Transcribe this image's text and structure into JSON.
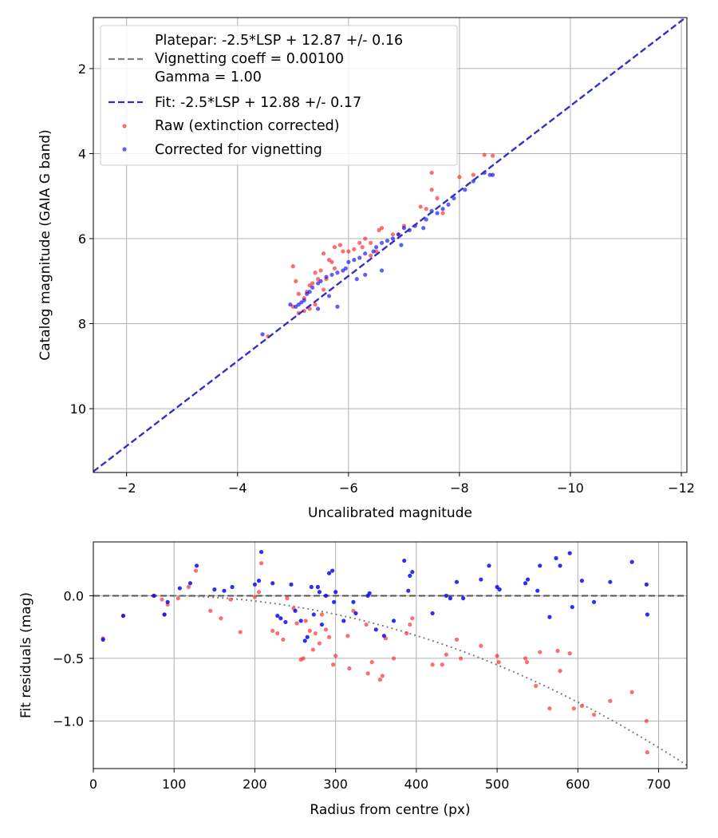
{
  "chart_data": [
    {
      "type": "scatter",
      "xlabel": "Uncalibrated magnitude",
      "ylabel": "Catalog magnitude (GAIA G band)",
      "xlim": [
        -1.4,
        -12.1
      ],
      "ylim": [
        11.5,
        0.8
      ],
      "xticks": [
        -2,
        -4,
        -6,
        -8,
        -10,
        -12
      ],
      "yticks": [
        2,
        4,
        6,
        8,
        10
      ],
      "xtick_labels": [
        "−2",
        "−4",
        "−6",
        "−8",
        "−10",
        "−12"
      ],
      "ytick_labels": [
        "2",
        "4",
        "6",
        "8",
        "10"
      ],
      "grid": true,
      "legend_position": "upper-left",
      "legend": [
        "Platepar: -2.5*LSP + 12.87 +/- 0.16",
        "Vignetting coeff = 0.00100",
        "Gamma = 1.00",
        "Fit: -2.5*LSP + 12.88 +/- 0.17",
        "Raw (extinction corrected)",
        "Corrected for vignetting"
      ],
      "lines": [
        {
          "name": "Platepar fit",
          "style": "dashed",
          "color": "#808080",
          "slope": -2.5,
          "intercept": 12.87
        },
        {
          "name": "Fit",
          "style": "dashed",
          "color": "#2a28d6",
          "slope": -2.5,
          "intercept": 12.88
        }
      ],
      "series": [
        {
          "name": "Raw (extinction corrected)",
          "color": "#ff2020",
          "points": [
            [
              -8.45,
              4.03
            ],
            [
              -8.25,
              4.5
            ],
            [
              -8.0,
              4.55
            ],
            [
              -7.5,
              4.45
            ],
            [
              -7.5,
              4.85
            ],
            [
              -7.6,
              5.05
            ],
            [
              -7.4,
              5.3
            ],
            [
              -7.3,
              5.25
            ],
            [
              -7.0,
              5.7
            ],
            [
              -6.9,
              5.9
            ],
            [
              -6.8,
              5.9
            ],
            [
              -6.6,
              5.75
            ],
            [
              -6.55,
              5.8
            ],
            [
              -6.4,
              6.1
            ],
            [
              -6.3,
              6.0
            ],
            [
              -6.25,
              6.2
            ],
            [
              -6.2,
              6.1
            ],
            [
              -6.1,
              6.25
            ],
            [
              -6.0,
              6.3
            ],
            [
              -5.9,
              6.3
            ],
            [
              -5.85,
              6.15
            ],
            [
              -5.75,
              6.2
            ],
            [
              -5.7,
              6.55
            ],
            [
              -5.75,
              6.7
            ],
            [
              -5.65,
              6.5
            ],
            [
              -5.55,
              6.35
            ],
            [
              -5.5,
              6.75
            ],
            [
              -5.45,
              6.95
            ],
            [
              -5.4,
              6.8
            ],
            [
              -5.35,
              7.05
            ],
            [
              -5.3,
              7.1
            ],
            [
              -5.25,
              7.25
            ],
            [
              -5.2,
              7.4
            ],
            [
              -5.1,
              7.3
            ],
            [
              -5.05,
              7.0
            ],
            [
              -5.0,
              6.65
            ],
            [
              -5.0,
              7.6
            ],
            [
              -5.1,
              7.75
            ],
            [
              -5.2,
              7.7
            ],
            [
              -5.3,
              7.65
            ],
            [
              -5.4,
              7.55
            ],
            [
              -5.55,
              7.2
            ],
            [
              -5.6,
              6.95
            ],
            [
              -6.4,
              6.4
            ],
            [
              -6.5,
              6.3
            ],
            [
              -4.55,
              8.3
            ],
            [
              -7.7,
              5.4
            ],
            [
              -8.6,
              4.05
            ]
          ]
        },
        {
          "name": "Corrected for vignetting",
          "color": "#0a0aee",
          "points": [
            [
              -8.55,
              4.5
            ],
            [
              -8.45,
              4.45
            ],
            [
              -8.25,
              4.65
            ],
            [
              -8.1,
              4.85
            ],
            [
              -7.9,
              5.05
            ],
            [
              -7.8,
              5.2
            ],
            [
              -7.7,
              5.3
            ],
            [
              -7.5,
              5.35
            ],
            [
              -7.4,
              5.55
            ],
            [
              -7.35,
              5.75
            ],
            [
              -7.2,
              5.7
            ],
            [
              -7.1,
              5.8
            ],
            [
              -7.0,
              5.75
            ],
            [
              -6.9,
              5.9
            ],
            [
              -6.8,
              6.0
            ],
            [
              -6.7,
              6.05
            ],
            [
              -6.6,
              6.1
            ],
            [
              -6.5,
              6.2
            ],
            [
              -6.45,
              6.3
            ],
            [
              -6.3,
              6.35
            ],
            [
              -6.2,
              6.45
            ],
            [
              -6.1,
              6.5
            ],
            [
              -6.0,
              6.55
            ],
            [
              -5.95,
              6.7
            ],
            [
              -5.9,
              6.75
            ],
            [
              -5.8,
              6.8
            ],
            [
              -5.7,
              6.85
            ],
            [
              -5.6,
              6.9
            ],
            [
              -5.5,
              7.0
            ],
            [
              -5.45,
              7.05
            ],
            [
              -5.35,
              7.15
            ],
            [
              -5.3,
              7.25
            ],
            [
              -5.25,
              7.3
            ],
            [
              -5.2,
              7.45
            ],
            [
              -5.15,
              7.5
            ],
            [
              -5.1,
              7.55
            ],
            [
              -5.05,
              7.6
            ],
            [
              -4.95,
              7.55
            ],
            [
              -5.45,
              7.65
            ],
            [
              -5.8,
              7.6
            ],
            [
              -4.45,
              8.25
            ],
            [
              -6.3,
              6.85
            ],
            [
              -6.6,
              6.75
            ],
            [
              -8.6,
              4.5
            ],
            [
              -7.6,
              5.4
            ],
            [
              -6.95,
              6.15
            ],
            [
              -5.65,
              7.35
            ],
            [
              -6.15,
              6.95
            ]
          ]
        }
      ]
    },
    {
      "type": "scatter",
      "xlabel": "Radius from centre (px)",
      "ylabel": "Fit residuals (mag)",
      "xlim": [
        0,
        735
      ],
      "ylim": [
        -1.38,
        0.43
      ],
      "xticks": [
        0,
        100,
        200,
        300,
        400,
        500,
        600,
        700
      ],
      "yticks": [
        0.0,
        -0.5,
        -1.0
      ],
      "xtick_labels": [
        "0",
        "100",
        "200",
        "300",
        "400",
        "500",
        "600",
        "700"
      ],
      "ytick_labels": [
        "0.0",
        "−0.5",
        "−1.0"
      ],
      "grid": true,
      "lines": [
        {
          "name": "zero line",
          "style": "dashed",
          "color": "#555555",
          "y": 0.0
        },
        {
          "name": "vignetting curve",
          "style": "dotted",
          "color": "#808080",
          "coeff": 0.001
        }
      ],
      "series": [
        {
          "name": "Raw (extinction corrected)",
          "color": "#ff2020",
          "points": [
            [
              12,
              -0.34
            ],
            [
              37,
              -0.16
            ],
            [
              75,
              0.0
            ],
            [
              85,
              -0.03
            ],
            [
              88,
              -0.15
            ],
            [
              92,
              -0.07
            ],
            [
              105,
              -0.02
            ],
            [
              118,
              0.07
            ],
            [
              127,
              0.2
            ],
            [
              145,
              -0.12
            ],
            [
              158,
              -0.18
            ],
            [
              170,
              -0.03
            ],
            [
              182,
              -0.29
            ],
            [
              200,
              -0.01
            ],
            [
              205,
              0.03
            ],
            [
              208,
              0.26
            ],
            [
              222,
              -0.28
            ],
            [
              228,
              -0.3
            ],
            [
              235,
              -0.35
            ],
            [
              240,
              -0.02
            ],
            [
              248,
              -0.1
            ],
            [
              252,
              -0.22
            ],
            [
              257,
              -0.51
            ],
            [
              260,
              -0.5
            ],
            [
              263,
              -0.2
            ],
            [
              268,
              -0.28
            ],
            [
              272,
              -0.43
            ],
            [
              275,
              -0.3
            ],
            [
              280,
              -0.38
            ],
            [
              283,
              -0.15
            ],
            [
              288,
              -0.27
            ],
            [
              292,
              -0.33
            ],
            [
              297,
              -0.55
            ],
            [
              300,
              -0.48
            ],
            [
              315,
              -0.32
            ],
            [
              317,
              -0.58
            ],
            [
              322,
              -0.12
            ],
            [
              338,
              -0.23
            ],
            [
              340,
              -0.62
            ],
            [
              345,
              -0.53
            ],
            [
              355,
              -0.67
            ],
            [
              358,
              -0.64
            ],
            [
              362,
              -0.34
            ],
            [
              372,
              -0.5
            ],
            [
              388,
              -0.3
            ],
            [
              392,
              -0.23
            ],
            [
              395,
              -0.18
            ],
            [
              420,
              -0.55
            ],
            [
              432,
              -0.55
            ],
            [
              437,
              -0.47
            ],
            [
              450,
              -0.35
            ],
            [
              455,
              -0.5
            ],
            [
              480,
              -0.4
            ],
            [
              500,
              -0.48
            ],
            [
              502,
              -0.53
            ],
            [
              535,
              -0.5
            ],
            [
              537,
              -0.53
            ],
            [
              548,
              -0.72
            ],
            [
              553,
              -0.45
            ],
            [
              565,
              -0.9
            ],
            [
              575,
              -0.44
            ],
            [
              578,
              -0.6
            ],
            [
              590,
              -0.46
            ],
            [
              595,
              -0.9
            ],
            [
              605,
              -0.88
            ],
            [
              620,
              -0.95
            ],
            [
              640,
              -0.84
            ],
            [
              667,
              -0.77
            ],
            [
              685,
              -1.0
            ],
            [
              686,
              -1.25
            ]
          ]
        },
        {
          "name": "Corrected for vignetting",
          "color": "#0a0aee",
          "points": [
            [
              12,
              -0.35
            ],
            [
              37,
              -0.16
            ],
            [
              75,
              0.0
            ],
            [
              88,
              -0.15
            ],
            [
              92,
              -0.05
            ],
            [
              107,
              0.06
            ],
            [
              120,
              0.1
            ],
            [
              128,
              0.24
            ],
            [
              150,
              0.05
            ],
            [
              162,
              0.04
            ],
            [
              172,
              0.07
            ],
            [
              200,
              0.09
            ],
            [
              205,
              0.12
            ],
            [
              208,
              0.35
            ],
            [
              222,
              0.1
            ],
            [
              228,
              -0.16
            ],
            [
              232,
              -0.18
            ],
            [
              238,
              -0.21
            ],
            [
              245,
              0.09
            ],
            [
              250,
              -0.12
            ],
            [
              257,
              -0.2
            ],
            [
              262,
              -0.36
            ],
            [
              265,
              -0.33
            ],
            [
              270,
              0.07
            ],
            [
              273,
              -0.15
            ],
            [
              278,
              0.07
            ],
            [
              280,
              0.03
            ],
            [
              283,
              -0.23
            ],
            [
              288,
              0.0
            ],
            [
              292,
              0.18
            ],
            [
              296,
              0.2
            ],
            [
              298,
              -0.05
            ],
            [
              300,
              0.03
            ],
            [
              310,
              -0.2
            ],
            [
              322,
              -0.05
            ],
            [
              325,
              -0.14
            ],
            [
              340,
              0.0
            ],
            [
              342,
              0.02
            ],
            [
              350,
              -0.27
            ],
            [
              360,
              -0.32
            ],
            [
              372,
              -0.2
            ],
            [
              385,
              0.28
            ],
            [
              390,
              0.04
            ],
            [
              392,
              0.16
            ],
            [
              395,
              0.19
            ],
            [
              420,
              -0.14
            ],
            [
              437,
              0.0
            ],
            [
              442,
              -0.02
            ],
            [
              450,
              0.11
            ],
            [
              458,
              -0.02
            ],
            [
              480,
              0.13
            ],
            [
              490,
              0.24
            ],
            [
              500,
              0.07
            ],
            [
              503,
              0.05
            ],
            [
              535,
              0.1
            ],
            [
              538,
              0.13
            ],
            [
              550,
              0.04
            ],
            [
              553,
              0.24
            ],
            [
              565,
              -0.17
            ],
            [
              573,
              0.3
            ],
            [
              578,
              0.24
            ],
            [
              590,
              0.34
            ],
            [
              593,
              -0.09
            ],
            [
              605,
              0.12
            ],
            [
              620,
              -0.05
            ],
            [
              640,
              0.11
            ],
            [
              667,
              0.27
            ],
            [
              685,
              0.09
            ],
            [
              686,
              -0.15
            ]
          ]
        }
      ]
    }
  ]
}
